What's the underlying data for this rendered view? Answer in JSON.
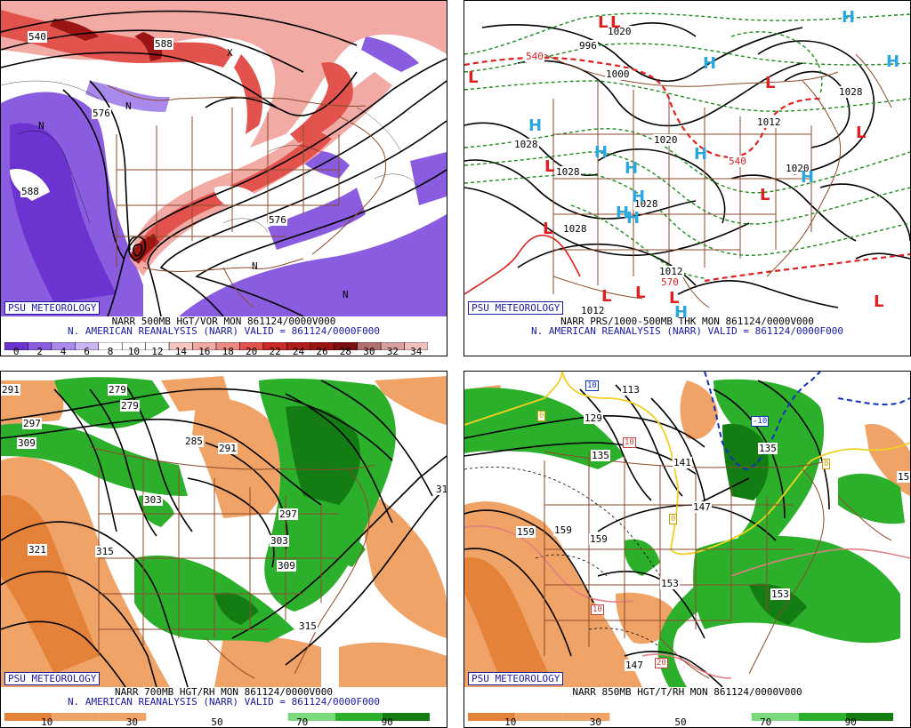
{
  "colors": {
    "purple": "#8a5ce0",
    "purple_dark": "#6b33cf",
    "red_light": "#f2aaa5",
    "red_mid": "#e2534d",
    "red_dark": "#9c1515",
    "orange": "#f0a366",
    "orange_dark": "#e4823a",
    "green_light": "#7bd97b",
    "green": "#2cb02c",
    "green_dark": "#137d13",
    "state_lines": "#8b4a2b",
    "badge_blue": "#1a1aa0",
    "high_blue": "#2aa7e0",
    "low_red": "#e02020"
  },
  "panels": [
    {
      "id": "vorticity",
      "badge": "PSU METEOROLOGY",
      "caption_line1": "NARR 500MB HGT/VOR MON 861124/0000V000",
      "caption_line2": "N. AMERICAN REANALYSIS (NARR) VALID = 861124/0000F000",
      "colorbar_ticks": [
        "0",
        "2",
        "4",
        "6",
        "8",
        "10",
        "12",
        "14",
        "16",
        "18",
        "20",
        "22",
        "24",
        "26",
        "28",
        "30",
        "32",
        "34"
      ],
      "contour_labels": [
        "540",
        "588",
        "576",
        "588",
        "576",
        "N",
        "N",
        "N",
        "N",
        "X"
      ]
    },
    {
      "id": "mslp",
      "badge": "PSU METEOROLOGY",
      "caption_line1": "NARR PRS/1000-500MB THK MON 861124/0000V000",
      "caption_line2": "N. AMERICAN REANALYSIS (NARR) VALID = 861124/0000F000",
      "contour_labels": [
        "996",
        "1000",
        "1028",
        "1028",
        "1020",
        "1020",
        "1028",
        "1028",
        "1012",
        "1012",
        "570",
        "540",
        "540",
        "1012",
        "1028",
        "1020"
      ],
      "highs": [
        "H",
        "H",
        "H",
        "H",
        "H",
        "H",
        "H",
        "H",
        "H",
        "H",
        "H",
        "H"
      ],
      "lows": [
        "L",
        "L",
        "L",
        "L",
        "L",
        "L",
        "L",
        "L",
        "L",
        "L",
        "L",
        "L"
      ]
    },
    {
      "id": "700mb",
      "badge": "PSU METEOROLOGY",
      "caption_line1": "NARR 700MB HGT/RH MON 861124/0000V000",
      "caption_line2": "N. AMERICAN REANALYSIS (NARR) VALID = 861124/0000F000",
      "colorbar_ticks": [
        "10",
        "30",
        "50",
        "70",
        "90"
      ],
      "contour_labels": [
        "291",
        "279",
        "279",
        "297",
        "309",
        "285",
        "291",
        "303",
        "297",
        "303",
        "309",
        "321",
        "315",
        "315",
        "31"
      ]
    },
    {
      "id": "850mb",
      "badge": "PSU METEOROLOGY",
      "caption_line1": "NARR 850MB HGT/T/RH MON 861124/0000V000",
      "caption_line2": "",
      "colorbar_ticks": [
        "10",
        "30",
        "50",
        "70",
        "90"
      ],
      "contour_labels": [
        "129",
        "135",
        "141",
        "147",
        "135",
        "159",
        "159",
        "159",
        "153",
        "153",
        "147",
        "15",
        "113"
      ],
      "temp_labels": [
        "10",
        "-10",
        "0",
        "10",
        "0",
        "10",
        "20",
        "0"
      ]
    }
  ]
}
